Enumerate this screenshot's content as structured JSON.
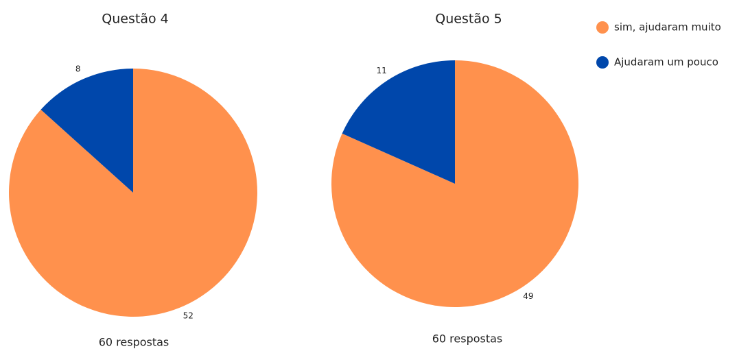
{
  "chart_data": [
    {
      "type": "pie",
      "title": "Questão 4",
      "values": [
        52,
        8
      ],
      "footer": "60 respostas"
    },
    {
      "type": "pie",
      "title": "Questão 5",
      "values": [
        49,
        11
      ],
      "footer": "60 respostas"
    }
  ],
  "legend": {
    "labels": [
      "sim, ajudaram muito",
      "Ajudaram um pouco"
    ],
    "colors": [
      "#ff914d",
      "#0047ab"
    ]
  }
}
